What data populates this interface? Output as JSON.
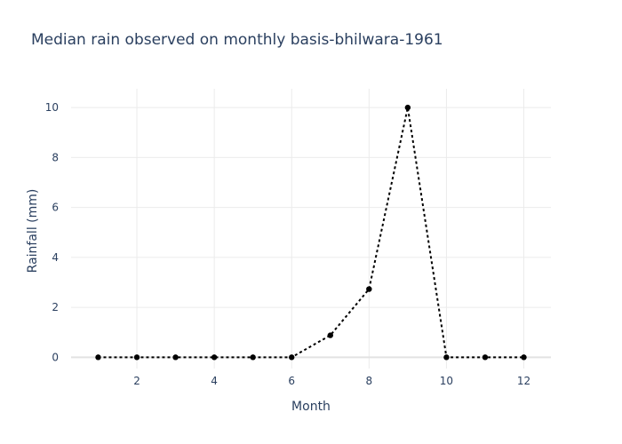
{
  "chart_data": {
    "type": "line",
    "title": "Median rain observed on monthly basis-bhilwara-1961",
    "xlabel": "Month",
    "ylabel": "Rainfall (mm)",
    "x": [
      1,
      2,
      3,
      4,
      5,
      6,
      7,
      8,
      9,
      10,
      11,
      12
    ],
    "series": [
      {
        "values": [
          0,
          0,
          0,
          0,
          0,
          0,
          0.88,
          2.73,
          10.0,
          0,
          0,
          0
        ],
        "color": "#000000",
        "line_style": "dotted",
        "marker": "circle"
      }
    ],
    "xlim": [
      0.3,
      12.7
    ],
    "ylim": [
      -0.45,
      10.75
    ],
    "xticks": [
      2,
      4,
      6,
      8,
      10,
      12
    ],
    "yticks": [
      0,
      2,
      4,
      6,
      8,
      10
    ],
    "grid": true,
    "legend": "none"
  }
}
